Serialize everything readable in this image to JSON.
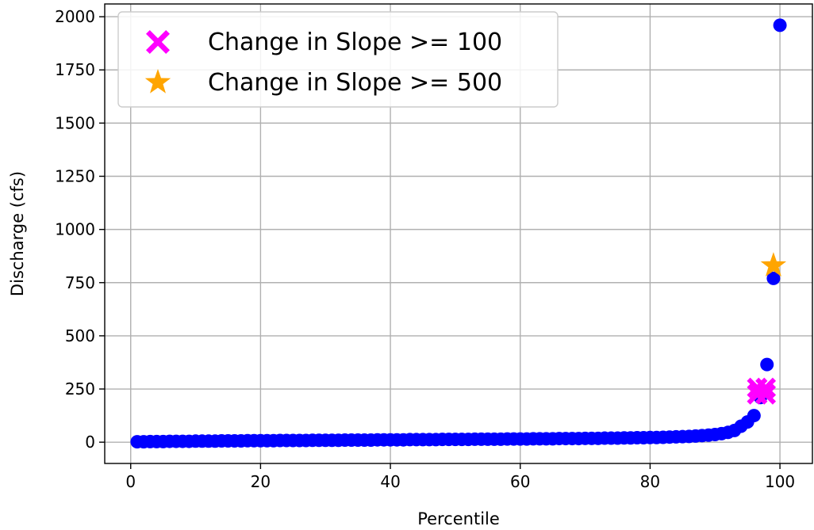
{
  "chart_data": {
    "type": "scatter",
    "title": "",
    "xlabel": "Percentile",
    "ylabel": "Discharge (cfs)",
    "xlim": [
      -4,
      105
    ],
    "ylim": [
      -100,
      2060
    ],
    "xticks": [
      0,
      20,
      40,
      60,
      80,
      100
    ],
    "yticks": [
      0,
      250,
      500,
      750,
      1000,
      1250,
      1500,
      1750,
      2000
    ],
    "grid": true,
    "legend_position": "top-left",
    "colors": {
      "points": "#0000ff",
      "slope100": "#ff00ff",
      "slope500": "#ffa500"
    },
    "series": [
      {
        "values": [
          [
            1,
            2
          ],
          [
            2,
            2
          ],
          [
            3,
            3
          ],
          [
            4,
            3
          ],
          [
            5,
            3
          ],
          [
            6,
            4
          ],
          [
            7,
            4
          ],
          [
            8,
            4
          ],
          [
            9,
            4
          ],
          [
            10,
            5
          ],
          [
            11,
            5
          ],
          [
            12,
            5
          ],
          [
            13,
            5
          ],
          [
            14,
            6
          ],
          [
            15,
            6
          ],
          [
            16,
            6
          ],
          [
            17,
            6
          ],
          [
            18,
            7
          ],
          [
            19,
            7
          ],
          [
            20,
            7
          ],
          [
            21,
            7
          ],
          [
            22,
            7
          ],
          [
            23,
            8
          ],
          [
            24,
            8
          ],
          [
            25,
            8
          ],
          [
            26,
            8
          ],
          [
            27,
            8
          ],
          [
            28,
            9
          ],
          [
            29,
            9
          ],
          [
            30,
            9
          ],
          [
            31,
            9
          ],
          [
            32,
            9
          ],
          [
            33,
            10
          ],
          [
            34,
            10
          ],
          [
            35,
            10
          ],
          [
            36,
            10
          ],
          [
            37,
            10
          ],
          [
            38,
            11
          ],
          [
            39,
            11
          ],
          [
            40,
            11
          ],
          [
            41,
            11
          ],
          [
            42,
            11
          ],
          [
            43,
            12
          ],
          [
            44,
            12
          ],
          [
            45,
            12
          ],
          [
            46,
            12
          ],
          [
            47,
            12
          ],
          [
            48,
            13
          ],
          [
            49,
            13
          ],
          [
            50,
            13
          ],
          [
            51,
            13
          ],
          [
            52,
            13
          ],
          [
            53,
            14
          ],
          [
            54,
            14
          ],
          [
            55,
            14
          ],
          [
            56,
            14
          ],
          [
            57,
            14
          ],
          [
            58,
            15
          ],
          [
            59,
            15
          ],
          [
            60,
            15
          ],
          [
            61,
            15
          ],
          [
            62,
            16
          ],
          [
            63,
            16
          ],
          [
            64,
            16
          ],
          [
            65,
            16
          ],
          [
            66,
            17
          ],
          [
            67,
            17
          ],
          [
            68,
            17
          ],
          [
            69,
            17
          ],
          [
            70,
            18
          ],
          [
            71,
            18
          ],
          [
            72,
            18
          ],
          [
            73,
            19
          ],
          [
            74,
            19
          ],
          [
            75,
            19
          ],
          [
            76,
            20
          ],
          [
            77,
            20
          ],
          [
            78,
            21
          ],
          [
            79,
            21
          ],
          [
            80,
            22
          ],
          [
            81,
            22
          ],
          [
            82,
            23
          ],
          [
            83,
            24
          ],
          [
            84,
            25
          ],
          [
            85,
            26
          ],
          [
            86,
            27
          ],
          [
            87,
            29
          ],
          [
            88,
            31
          ],
          [
            89,
            33
          ],
          [
            90,
            36
          ],
          [
            91,
            40
          ],
          [
            92,
            46
          ],
          [
            93,
            55
          ],
          [
            94,
            75
          ],
          [
            95,
            95
          ],
          [
            96,
            125
          ],
          [
            97,
            210
          ],
          [
            98,
            365
          ],
          [
            99,
            770
          ],
          [
            100,
            1960
          ]
        ]
      }
    ],
    "markers": [
      {
        "label": "Change in Slope >= 100",
        "shape": "x",
        "points": [
          [
            96.5,
            255
          ],
          [
            97.8,
            255
          ],
          [
            96.5,
            225
          ],
          [
            97.8,
            225
          ]
        ]
      },
      {
        "label": "Change in Slope >= 500",
        "shape": "star",
        "points": [
          [
            99,
            830
          ]
        ]
      }
    ]
  }
}
